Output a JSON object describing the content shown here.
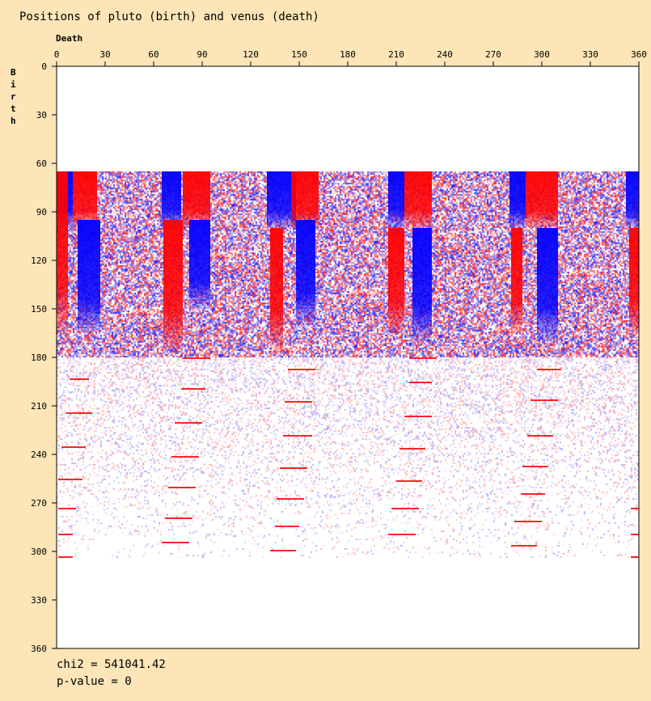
{
  "chart_data": {
    "type": "heatmap",
    "title": "Positions of pluto (birth) and venus (death)",
    "xlabel": "Death",
    "ylabel": "Birth",
    "xlim": [
      0,
      360
    ],
    "ylim": [
      0,
      360
    ],
    "x_ticks": [
      0,
      30,
      60,
      90,
      120,
      150,
      180,
      210,
      240,
      270,
      300,
      330,
      360
    ],
    "y_ticks": [
      0,
      30,
      60,
      90,
      120,
      150,
      180,
      210,
      240,
      270,
      300,
      330,
      360
    ],
    "x_axis_position": "top",
    "y_axis_inverted": true,
    "cell_size_deg": 2,
    "data_birth_range": [
      65,
      303
    ],
    "colors": {
      "positive": "#ff0000",
      "negative": "#0000ff",
      "zero": "#ffffff",
      "background": "#fde5b7"
    },
    "bands": [
      {
        "sign": "negative",
        "death": [
          0,
          10
        ],
        "birth": [
          65,
          100
        ]
      },
      {
        "sign": "positive",
        "death": [
          0,
          7
        ],
        "birth": [
          65,
          165
        ]
      },
      {
        "sign": "positive",
        "death": [
          10,
          25
        ],
        "birth": [
          65,
          100
        ]
      },
      {
        "sign": "negative",
        "death": [
          13,
          27
        ],
        "birth": [
          95,
          165
        ]
      },
      {
        "sign": "negative",
        "death": [
          65,
          77
        ],
        "birth": [
          65,
          100
        ]
      },
      {
        "sign": "positive",
        "death": [
          66,
          78
        ],
        "birth": [
          95,
          175
        ]
      },
      {
        "sign": "positive",
        "death": [
          78,
          95
        ],
        "birth": [
          65,
          100
        ]
      },
      {
        "sign": "negative",
        "death": [
          82,
          95
        ],
        "birth": [
          95,
          150
        ]
      },
      {
        "sign": "negative",
        "death": [
          130,
          148
        ],
        "birth": [
          65,
          100
        ]
      },
      {
        "sign": "positive",
        "death": [
          132,
          140
        ],
        "birth": [
          100,
          175
        ]
      },
      {
        "sign": "positive",
        "death": [
          145,
          162
        ],
        "birth": [
          65,
          100
        ]
      },
      {
        "sign": "negative",
        "death": [
          148,
          160
        ],
        "birth": [
          95,
          160
        ]
      },
      {
        "sign": "negative",
        "death": [
          205,
          215
        ],
        "birth": [
          65,
          100
        ]
      },
      {
        "sign": "positive",
        "death": [
          205,
          215
        ],
        "birth": [
          100,
          165
        ]
      },
      {
        "sign": "positive",
        "death": [
          215,
          232
        ],
        "birth": [
          65,
          100
        ]
      },
      {
        "sign": "negative",
        "death": [
          220,
          232
        ],
        "birth": [
          100,
          170
        ]
      },
      {
        "sign": "negative",
        "death": [
          280,
          290
        ],
        "birth": [
          65,
          100
        ]
      },
      {
        "sign": "positive",
        "death": [
          281,
          288
        ],
        "birth": [
          100,
          165
        ]
      },
      {
        "sign": "positive",
        "death": [
          290,
          310
        ],
        "birth": [
          65,
          100
        ]
      },
      {
        "sign": "negative",
        "death": [
          297,
          310
        ],
        "birth": [
          100,
          170
        ]
      },
      {
        "sign": "negative",
        "death": [
          352,
          360
        ],
        "birth": [
          65,
          100
        ]
      },
      {
        "sign": "positive",
        "death": [
          354,
          360
        ],
        "birth": [
          100,
          165
        ]
      }
    ],
    "dashes": [
      {
        "death": [
          8,
          20
        ],
        "birth": 193
      },
      {
        "death": [
          6,
          22
        ],
        "birth": 214
      },
      {
        "death": [
          3,
          18
        ],
        "birth": 235
      },
      {
        "death": [
          1,
          16
        ],
        "birth": 255
      },
      {
        "death": [
          1,
          12
        ],
        "birth": 273
      },
      {
        "death": [
          1,
          10
        ],
        "birth": 289
      },
      {
        "death": [
          1,
          10
        ],
        "birth": 303
      },
      {
        "death": [
          78,
          95
        ],
        "birth": 180
      },
      {
        "death": [
          77,
          92
        ],
        "birth": 199
      },
      {
        "death": [
          73,
          90
        ],
        "birth": 220
      },
      {
        "death": [
          71,
          88
        ],
        "birth": 241
      },
      {
        "death": [
          69,
          86
        ],
        "birth": 260
      },
      {
        "death": [
          67,
          84
        ],
        "birth": 279
      },
      {
        "death": [
          65,
          82
        ],
        "birth": 294
      },
      {
        "death": [
          143,
          160
        ],
        "birth": 187
      },
      {
        "death": [
          141,
          158
        ],
        "birth": 207
      },
      {
        "death": [
          140,
          158
        ],
        "birth": 228
      },
      {
        "death": [
          138,
          155
        ],
        "birth": 248
      },
      {
        "death": [
          136,
          153
        ],
        "birth": 267
      },
      {
        "death": [
          135,
          150
        ],
        "birth": 284
      },
      {
        "death": [
          132,
          148
        ],
        "birth": 299
      },
      {
        "death": [
          218,
          235
        ],
        "birth": 180
      },
      {
        "death": [
          218,
          232
        ],
        "birth": 195
      },
      {
        "death": [
          215,
          232
        ],
        "birth": 216
      },
      {
        "death": [
          212,
          228
        ],
        "birth": 236
      },
      {
        "death": [
          210,
          226
        ],
        "birth": 256
      },
      {
        "death": [
          207,
          224
        ],
        "birth": 273
      },
      {
        "death": [
          205,
          222
        ],
        "birth": 289
      },
      {
        "death": [
          297,
          312
        ],
        "birth": 187
      },
      {
        "death": [
          293,
          310
        ],
        "birth": 206
      },
      {
        "death": [
          291,
          307
        ],
        "birth": 228
      },
      {
        "death": [
          288,
          304
        ],
        "birth": 247
      },
      {
        "death": [
          287,
          302
        ],
        "birth": 264
      },
      {
        "death": [
          283,
          300
        ],
        "birth": 281
      },
      {
        "death": [
          281,
          297
        ],
        "birth": 296
      },
      {
        "death": [
          355,
          360
        ],
        "birth": 273
      },
      {
        "death": [
          355,
          360
        ],
        "birth": 289
      },
      {
        "death": [
          355,
          360
        ],
        "birth": 303
      }
    ]
  },
  "stats": {
    "chi2": "chi2 = 541041.42",
    "pvalue": "p-value = 0"
  }
}
